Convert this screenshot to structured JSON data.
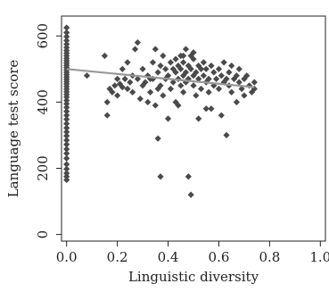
{
  "chart_data": {
    "type": "scatter",
    "title": "",
    "xlabel": "Linguistic diversity",
    "ylabel": "Language test score",
    "xlim": [
      -0.02,
      1.02
    ],
    "ylim": [
      -20,
      660
    ],
    "x_ticks": [
      0.0,
      0.2,
      0.4,
      0.6,
      0.8,
      1.0
    ],
    "x_tick_labels": [
      "0.0",
      "0.2",
      "0.4",
      "0.6",
      "0.8",
      "1.0"
    ],
    "y_ticks": [
      0,
      200,
      400,
      600
    ],
    "y_tick_labels": [
      "0",
      "200",
      "400",
      "600"
    ],
    "grid": false,
    "legend": "none",
    "colors": {
      "points": "#4a4a4a",
      "fit_line": "#999999",
      "axes": "#222222"
    },
    "series": [
      {
        "points": [
          [
            0.0,
            165
          ],
          [
            0.0,
            175
          ],
          [
            0.0,
            185
          ],
          [
            0.0,
            198
          ],
          [
            0.0,
            212
          ],
          [
            0.0,
            230
          ],
          [
            0.0,
            245
          ],
          [
            0.0,
            258
          ],
          [
            0.0,
            272
          ],
          [
            0.0,
            285
          ],
          [
            0.0,
            298
          ],
          [
            0.0,
            310
          ],
          [
            0.0,
            322
          ],
          [
            0.0,
            335
          ],
          [
            0.0,
            348
          ],
          [
            0.0,
            360
          ],
          [
            0.0,
            372
          ],
          [
            0.0,
            384
          ],
          [
            0.0,
            395
          ],
          [
            0.0,
            405
          ],
          [
            0.0,
            415
          ],
          [
            0.0,
            423
          ],
          [
            0.0,
            431
          ],
          [
            0.0,
            439
          ],
          [
            0.0,
            447
          ],
          [
            0.0,
            455
          ],
          [
            0.0,
            462
          ],
          [
            0.0,
            469
          ],
          [
            0.0,
            476
          ],
          [
            0.0,
            483
          ],
          [
            0.0,
            490
          ],
          [
            0.0,
            497
          ],
          [
            0.0,
            504
          ],
          [
            0.0,
            511
          ],
          [
            0.0,
            518
          ],
          [
            0.0,
            525
          ],
          [
            0.0,
            532
          ],
          [
            0.0,
            540
          ],
          [
            0.0,
            548
          ],
          [
            0.0,
            556
          ],
          [
            0.0,
            565
          ],
          [
            0.0,
            575
          ],
          [
            0.0,
            586
          ],
          [
            0.0,
            598
          ],
          [
            0.0,
            610
          ],
          [
            0.0,
            625
          ],
          [
            0.08,
            480
          ],
          [
            0.15,
            540
          ],
          [
            0.16,
            360
          ],
          [
            0.16,
            400
          ],
          [
            0.17,
            440
          ],
          [
            0.18,
            430
          ],
          [
            0.19,
            450
          ],
          [
            0.2,
            420
          ],
          [
            0.2,
            470
          ],
          [
            0.21,
            455
          ],
          [
            0.22,
            445
          ],
          [
            0.22,
            500
          ],
          [
            0.23,
            470
          ],
          [
            0.24,
            520
          ],
          [
            0.24,
            440
          ],
          [
            0.25,
            460
          ],
          [
            0.26,
            480
          ],
          [
            0.26,
            430
          ],
          [
            0.27,
            560
          ],
          [
            0.28,
            580
          ],
          [
            0.28,
            470
          ],
          [
            0.29,
            410
          ],
          [
            0.3,
            450
          ],
          [
            0.3,
            500
          ],
          [
            0.31,
            460
          ],
          [
            0.32,
            480
          ],
          [
            0.32,
            400
          ],
          [
            0.33,
            430
          ],
          [
            0.34,
            520
          ],
          [
            0.34,
            470
          ],
          [
            0.35,
            560
          ],
          [
            0.35,
            390
          ],
          [
            0.36,
            440
          ],
          [
            0.36,
            490
          ],
          [
            0.37,
            510
          ],
          [
            0.37,
            450
          ],
          [
            0.38,
            420
          ],
          [
            0.38,
            540
          ],
          [
            0.39,
            470
          ],
          [
            0.36,
            290
          ],
          [
            0.37,
            175
          ],
          [
            0.4,
            350
          ],
          [
            0.4,
            480
          ],
          [
            0.41,
            520
          ],
          [
            0.41,
            440
          ],
          [
            0.42,
            500
          ],
          [
            0.42,
            460
          ],
          [
            0.43,
            490
          ],
          [
            0.43,
            530
          ],
          [
            0.43,
            400
          ],
          [
            0.44,
            510
          ],
          [
            0.44,
            470
          ],
          [
            0.45,
            540
          ],
          [
            0.45,
            450
          ],
          [
            0.45,
            500
          ],
          [
            0.46,
            480
          ],
          [
            0.46,
            520
          ],
          [
            0.46,
            430
          ],
          [
            0.47,
            560
          ],
          [
            0.47,
            490
          ],
          [
            0.47,
            460
          ],
          [
            0.48,
            510
          ],
          [
            0.48,
            470
          ],
          [
            0.48,
            175
          ],
          [
            0.49,
            120
          ],
          [
            0.49,
            540
          ],
          [
            0.49,
            500
          ],
          [
            0.5,
            480
          ],
          [
            0.5,
            450
          ],
          [
            0.5,
            530
          ],
          [
            0.51,
            490
          ],
          [
            0.51,
            420
          ],
          [
            0.52,
            510
          ],
          [
            0.52,
            470
          ],
          [
            0.53,
            500
          ],
          [
            0.53,
            440
          ],
          [
            0.54,
            480
          ],
          [
            0.54,
            520
          ],
          [
            0.55,
            460
          ],
          [
            0.55,
            500
          ],
          [
            0.56,
            430
          ],
          [
            0.56,
            470
          ],
          [
            0.57,
            510
          ],
          [
            0.57,
            380
          ],
          [
            0.58,
            490
          ],
          [
            0.58,
            450
          ],
          [
            0.59,
            470
          ],
          [
            0.6,
            500
          ],
          [
            0.6,
            440
          ],
          [
            0.61,
            480
          ],
          [
            0.61,
            360
          ],
          [
            0.62,
            460
          ],
          [
            0.62,
            520
          ],
          [
            0.63,
            300
          ],
          [
            0.63,
            470
          ],
          [
            0.64,
            490
          ],
          [
            0.64,
            450
          ],
          [
            0.65,
            510
          ],
          [
            0.65,
            430
          ],
          [
            0.66,
            470
          ],
          [
            0.67,
            480
          ],
          [
            0.67,
            400
          ],
          [
            0.68,
            460
          ],
          [
            0.68,
            500
          ],
          [
            0.69,
            440
          ],
          [
            0.7,
            470
          ],
          [
            0.7,
            420
          ],
          [
            0.71,
            480
          ],
          [
            0.72,
            450
          ],
          [
            0.73,
            430
          ],
          [
            0.74,
            440
          ],
          [
            0.74,
            460
          ],
          [
            0.52,
            350
          ],
          [
            0.55,
            380
          ],
          [
            0.44,
            390
          ],
          [
            0.46,
            540
          ],
          [
            0.5,
            550
          ],
          [
            0.39,
            500
          ],
          [
            0.33,
            470
          ]
        ]
      }
    ],
    "fit_line": {
      "x": [
        0.0,
        0.74
      ],
      "y": [
        500,
        445
      ]
    }
  }
}
